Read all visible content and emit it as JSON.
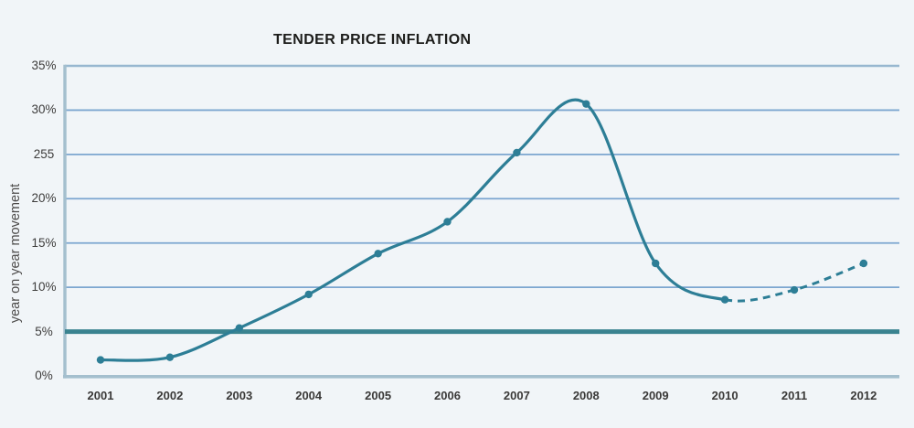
{
  "chart_data": {
    "type": "line",
    "title": "TENDER PRICE INFLATION",
    "ylabel": "year on year movement",
    "xlabel": "",
    "categories": [
      "2001",
      "2002",
      "2003",
      "2004",
      "2005",
      "2006",
      "2007",
      "2008",
      "2009",
      "2010",
      "2011",
      "2012"
    ],
    "series": [
      {
        "name": "tender price inflation",
        "values": [
          1.8,
          2.1,
          5.4,
          9.2,
          13.8,
          17.4,
          25.2,
          30.7,
          12.7,
          8.6,
          9.7,
          12.7
        ],
        "dashed_from_index": 9,
        "dashed_note": "forecast portion 2010-2012 drawn dashed"
      }
    ],
    "y_ticks": [
      {
        "label": "35%",
        "value": 35
      },
      {
        "label": "30%",
        "value": 30
      },
      {
        "label": "255",
        "value": 25
      },
      {
        "label": "20%",
        "value": 20
      },
      {
        "label": "15%",
        "value": 15
      },
      {
        "label": "10%",
        "value": 10
      },
      {
        "label": "5%",
        "value": 5
      },
      {
        "label": "0%",
        "value": 0
      }
    ],
    "ylim": [
      0,
      35
    ],
    "grid": true,
    "legend": "none",
    "reference_line": {
      "value": 5,
      "color": "#3a8390",
      "width": 5
    },
    "colors": {
      "line": "#2d7e96",
      "marker": "#2d7e96",
      "grid": "#7ca6d0",
      "axis": "#a4bfce",
      "top_border": "#97b7d0",
      "background": "#f1f5f8",
      "title_text": "#1c1c1a",
      "tick_text": "#3d3c3b"
    }
  }
}
